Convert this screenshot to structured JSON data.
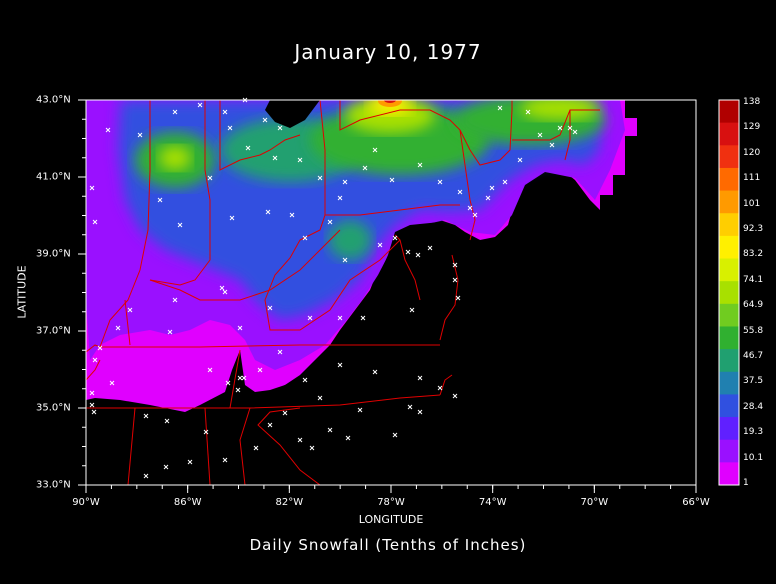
{
  "title": "January 10, 1977",
  "subtitle": "Daily Snowfall (Tenths of Inches)",
  "xlabel": "LONGITUDE",
  "ylabel": "LATITUDE",
  "x_ticks": [
    "90°W",
    "86°W",
    "82°W",
    "78°W",
    "74°W",
    "70°W",
    "66°W"
  ],
  "y_ticks": [
    "43.0°N",
    "41.0°N",
    "39.0°N",
    "37.0°N",
    "35.0°N",
    "33.0°N"
  ],
  "colorbar_ticks": [
    "138",
    "129",
    "120",
    "111",
    "101",
    "92.3",
    "83.2",
    "74.1",
    "64.9",
    "55.8",
    "46.7",
    "37.5",
    "28.4",
    "19.3",
    "10.1",
    "1"
  ],
  "colorbar_colors": [
    "#b00000",
    "#d81010",
    "#f03010",
    "#ff6a00",
    "#ff9a00",
    "#ffce00",
    "#fff000",
    "#d8f000",
    "#a8e000",
    "#70cc20",
    "#30b030",
    "#20a070",
    "#2080b0",
    "#3050e0",
    "#6020ff",
    "#9a10ff",
    "#e000ff"
  ],
  "colors": {
    "boundary": "#e00000",
    "axes": "#ffffff",
    "station": "#ffffff"
  },
  "chart_data": {
    "type": "heatmap",
    "title": "January 10, 1977",
    "subtitle": "Daily Snowfall (Tenths of Inches)",
    "xlabel": "LONGITUDE",
    "ylabel": "LATITUDE",
    "xlim": [
      -90,
      -66
    ],
    "ylim": [
      33,
      43
    ],
    "units": "tenths of inches",
    "color_scale_range": [
      1,
      138
    ],
    "max_location": {
      "lon": -78.2,
      "lat": 42.9,
      "value": 138
    },
    "secondary_maxima": [
      {
        "lon": -86.4,
        "lat": 41.7,
        "value": 74
      },
      {
        "lon": -72.5,
        "lat": 42.6,
        "value": 65
      }
    ]
  }
}
